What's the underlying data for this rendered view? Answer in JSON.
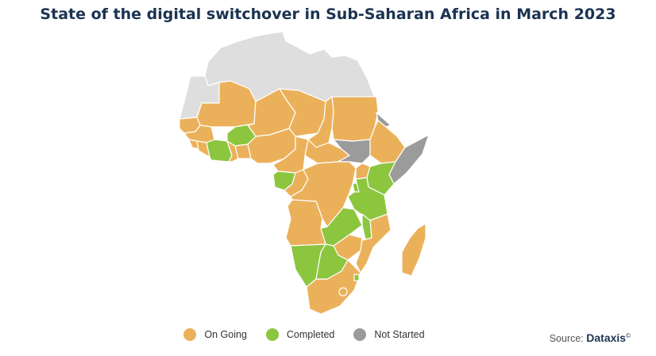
{
  "title": "State of the digital switchover in Sub-Saharan Africa in March 2023",
  "legend": [
    {
      "label": "On Going",
      "color": "#ebb15a"
    },
    {
      "label": "Completed",
      "color": "#8cc63f"
    },
    {
      "label": "Not Started",
      "color": "#9b9b9b"
    }
  ],
  "source": {
    "prefix": "Source:",
    "brand": "Dataxis",
    "mark": "©"
  },
  "colors": {
    "on_going": "#ebb15a",
    "completed": "#8cc63f",
    "not_started": "#9b9b9b",
    "no_data": "#dedede",
    "border": "#ffffff"
  },
  "regions": [
    {
      "name": "north-africa",
      "status": "no_data"
    },
    {
      "name": "western-sahara",
      "status": "no_data"
    },
    {
      "name": "mauritania",
      "status": "on_going"
    },
    {
      "name": "mali",
      "status": "on_going"
    },
    {
      "name": "niger",
      "status": "on_going"
    },
    {
      "name": "chad",
      "status": "on_going"
    },
    {
      "name": "sudan",
      "status": "on_going"
    },
    {
      "name": "senegal",
      "status": "on_going"
    },
    {
      "name": "guinea",
      "status": "on_going"
    },
    {
      "name": "sierra-leone",
      "status": "on_going"
    },
    {
      "name": "liberia",
      "status": "on_going"
    },
    {
      "name": "burkina-faso",
      "status": "completed"
    },
    {
      "name": "cote-divoire",
      "status": "completed"
    },
    {
      "name": "ghana",
      "status": "on_going"
    },
    {
      "name": "togo-benin",
      "status": "on_going"
    },
    {
      "name": "nigeria",
      "status": "on_going"
    },
    {
      "name": "cameroon",
      "status": "on_going"
    },
    {
      "name": "central-african-republic",
      "status": "on_going"
    },
    {
      "name": "south-sudan",
      "status": "not_started"
    },
    {
      "name": "eritrea",
      "status": "not_started"
    },
    {
      "name": "ethiopia",
      "status": "on_going"
    },
    {
      "name": "somalia",
      "status": "not_started"
    },
    {
      "name": "gabon",
      "status": "completed"
    },
    {
      "name": "congo",
      "status": "on_going"
    },
    {
      "name": "dr-congo",
      "status": "on_going"
    },
    {
      "name": "uganda",
      "status": "on_going"
    },
    {
      "name": "kenya",
      "status": "completed"
    },
    {
      "name": "rwanda-burundi",
      "status": "completed"
    },
    {
      "name": "tanzania",
      "status": "completed"
    },
    {
      "name": "angola",
      "status": "on_going"
    },
    {
      "name": "zambia",
      "status": "completed"
    },
    {
      "name": "malawi",
      "status": "completed"
    },
    {
      "name": "mozambique",
      "status": "on_going"
    },
    {
      "name": "zimbabwe",
      "status": "on_going"
    },
    {
      "name": "namibia",
      "status": "completed"
    },
    {
      "name": "botswana",
      "status": "completed"
    },
    {
      "name": "south-africa",
      "status": "on_going"
    },
    {
      "name": "eswatini",
      "status": "completed"
    },
    {
      "name": "madagascar",
      "status": "on_going"
    }
  ]
}
